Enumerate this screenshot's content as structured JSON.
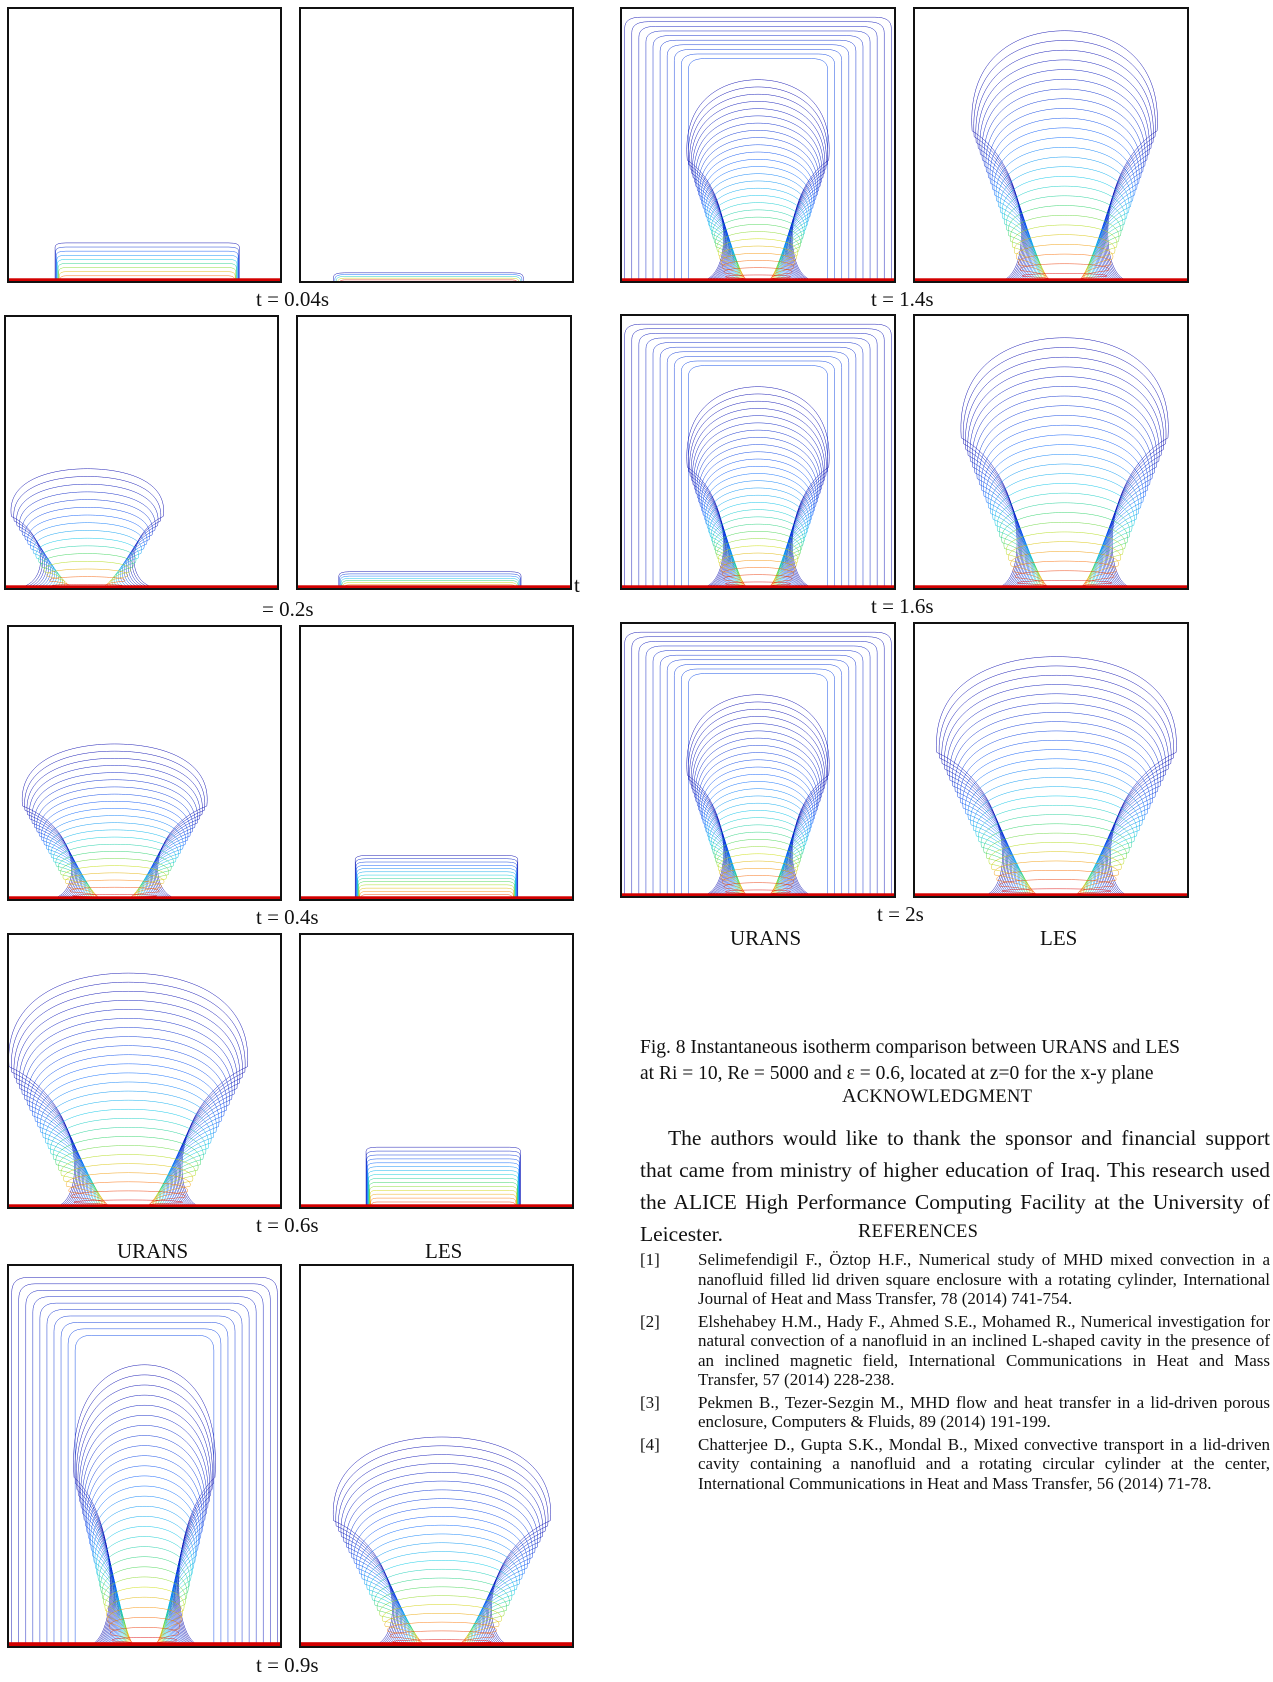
{
  "left_column": {
    "rows": [
      {
        "caption": "t = 0.04s",
        "variant": 0
      },
      {
        "caption": "= 0.2s",
        "variant": 1,
        "stray": "t"
      },
      {
        "caption": "t = 0.4s",
        "variant": 2
      },
      {
        "caption": "t = 0.6s",
        "variant": 3
      },
      {
        "caption": "t = 0.9s",
        "variant": 4
      }
    ],
    "label_urans": "URANS",
    "label_les": "LES"
  },
  "right_column": {
    "rows": [
      {
        "caption": "t = 1.4s",
        "variant": 5
      },
      {
        "caption": "t = 1.6s",
        "variant": 6
      },
      {
        "caption": "t = 2s",
        "variant": 7
      }
    ],
    "label_urans": "URANS",
    "label_les": "LES"
  },
  "figure_caption": {
    "line1": "Fig. 8 Instantaneous isotherm comparison between URANS and LES",
    "line2": "at Ri = 10, Re = 5000 and ε = 0.6, located at z=0 for the x-y plane"
  },
  "acknowledgment": {
    "heading_initial": "A",
    "heading_rest": "CKNOWLEDGMENT",
    "text": "The authors would like to thank the sponsor and financial support that came from ministry of higher education of Iraq. This research used the ALICE High Performance Computing Facility at the University of Leicester."
  },
  "references": {
    "heading_initial": "R",
    "heading_rest": "EFERENCES",
    "items": [
      {
        "num": "[1]",
        "text": "Selimefendigil F., Öztop H.F., Numerical study of MHD mixed convection in a nanofluid filled lid driven square enclosure with a rotating cylinder, International Journal of Heat and Mass Transfer, 78 (2014) 741-754."
      },
      {
        "num": "[2]",
        "text": "Elshehabey H.M., Hady F., Ahmed S.E., Mohamed R., Numerical investigation for natural convection of a nanofluid in an inclined L-shaped cavity in the presence of an inclined magnetic field, International Communications in Heat and Mass Transfer, 57 (2014) 228-238."
      },
      {
        "num": "[3]",
        "text": "Pekmen B., Tezer-Sezgin M., MHD flow and heat transfer in a lid-driven porous enclosure, Computers & Fluids, 89 (2014) 191-199."
      },
      {
        "num": "[4]",
        "text": "Chatterjee D., Gupta S.K., Mondal B., Mixed convective transport in a lid-driven cavity containing a nanofluid and a rotating circular cylinder at the center, International Communications in Heat and Mass Transfer, 56 (2014) 71-78."
      }
    ]
  }
}
